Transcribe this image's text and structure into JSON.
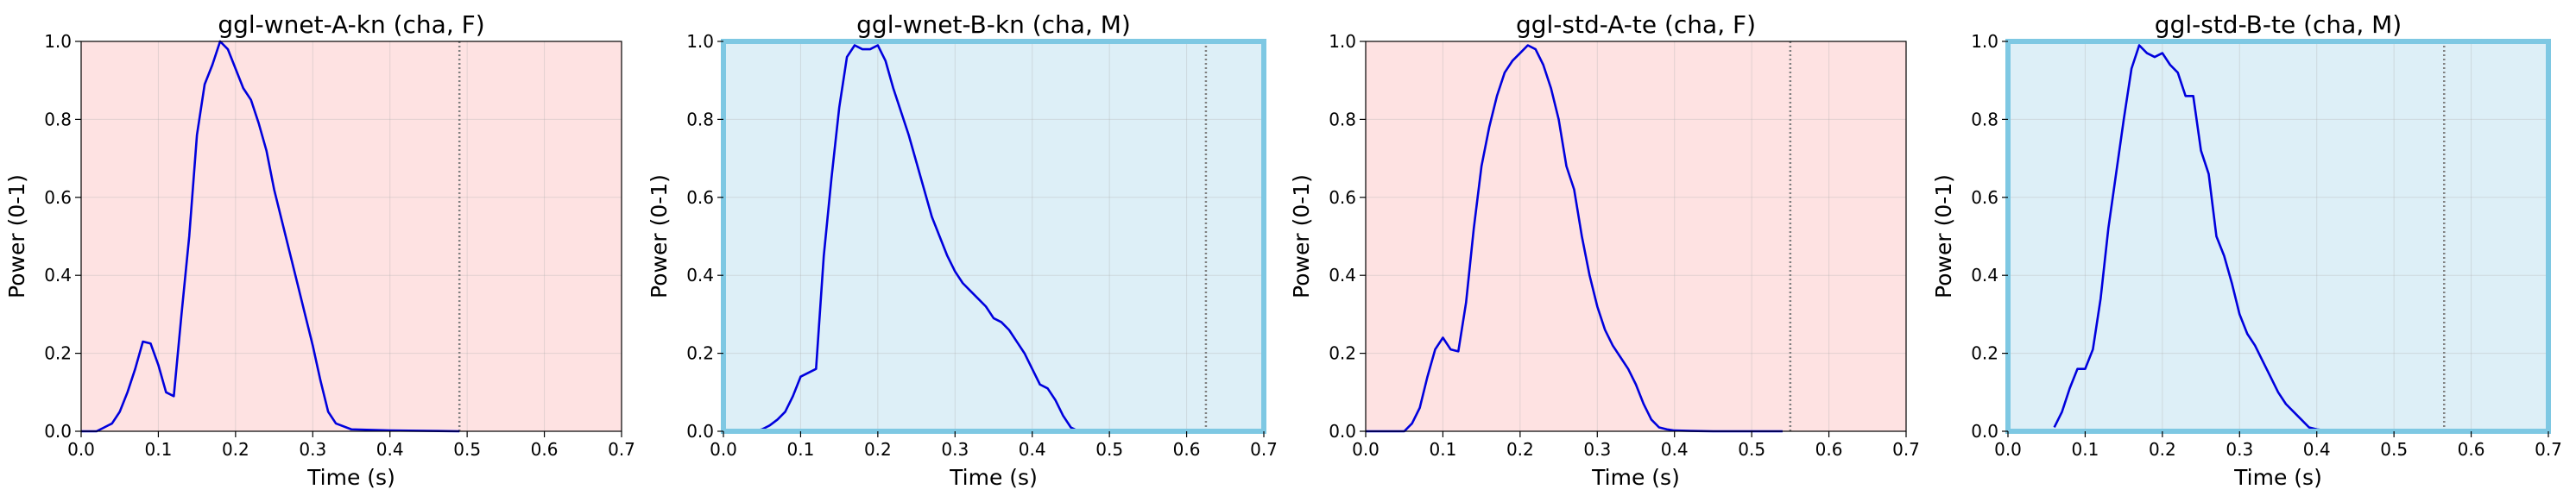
{
  "chart_data": [
    {
      "type": "line",
      "title": "ggl-wnet-A-kn (cha, F)",
      "xlabel": "Time (s)",
      "ylabel": "Power (0-1)",
      "xlim": [
        0,
        0.7
      ],
      "ylim": [
        0,
        1.0
      ],
      "xticks": [
        "0.0",
        "0.1",
        "0.2",
        "0.3",
        "0.4",
        "0.5",
        "0.6",
        "0.7"
      ],
      "yticks": [
        "0.0",
        "0.2",
        "0.4",
        "0.6",
        "0.8",
        "1.0"
      ],
      "grid": true,
      "background_color": "#fee2e2",
      "frame_color": "",
      "line_color": "#0000dd",
      "marker_x": 0.49,
      "series": [
        {
          "x": [
            0.0,
            0.02,
            0.03,
            0.04,
            0.05,
            0.06,
            0.07,
            0.08,
            0.09,
            0.1,
            0.11,
            0.12,
            0.13,
            0.14,
            0.15,
            0.16,
            0.17,
            0.18,
            0.19,
            0.2,
            0.21,
            0.22,
            0.23,
            0.24,
            0.25,
            0.26,
            0.27,
            0.28,
            0.29,
            0.3,
            0.31,
            0.32,
            0.33,
            0.35,
            0.4,
            0.45,
            0.49
          ],
          "y": [
            0.0,
            0.0,
            0.01,
            0.02,
            0.05,
            0.1,
            0.16,
            0.23,
            0.225,
            0.17,
            0.1,
            0.09,
            0.3,
            0.5,
            0.76,
            0.89,
            0.94,
            1.0,
            0.98,
            0.93,
            0.88,
            0.85,
            0.79,
            0.72,
            0.62,
            0.54,
            0.46,
            0.38,
            0.3,
            0.22,
            0.13,
            0.05,
            0.02,
            0.005,
            0.002,
            0.001,
            0.0
          ]
        }
      ]
    },
    {
      "type": "line",
      "title": "ggl-wnet-B-kn (cha, M)",
      "xlabel": "Time (s)",
      "ylabel": "Power (0-1)",
      "xlim": [
        0,
        0.7
      ],
      "ylim": [
        0,
        1.0
      ],
      "xticks": [
        "0.0",
        "0.1",
        "0.2",
        "0.3",
        "0.4",
        "0.5",
        "0.6",
        "0.7"
      ],
      "yticks": [
        "0.0",
        "0.2",
        "0.4",
        "0.6",
        "0.8",
        "1.0"
      ],
      "grid": true,
      "background_color": "#ddeff7",
      "frame_color": "#7ec8e3",
      "line_color": "#0000dd",
      "marker_x": 0.625,
      "series": [
        {
          "x": [
            0.04,
            0.05,
            0.06,
            0.07,
            0.08,
            0.09,
            0.1,
            0.11,
            0.12,
            0.13,
            0.14,
            0.15,
            0.16,
            0.17,
            0.18,
            0.19,
            0.2,
            0.21,
            0.22,
            0.23,
            0.24,
            0.25,
            0.26,
            0.27,
            0.28,
            0.29,
            0.3,
            0.31,
            0.32,
            0.33,
            0.34,
            0.35,
            0.36,
            0.37,
            0.38,
            0.39,
            0.4,
            0.41,
            0.42,
            0.43,
            0.44,
            0.45,
            0.46
          ],
          "y": [
            0.0,
            0.005,
            0.015,
            0.03,
            0.05,
            0.09,
            0.14,
            0.15,
            0.16,
            0.45,
            0.65,
            0.83,
            0.96,
            0.99,
            0.98,
            0.98,
            0.99,
            0.95,
            0.88,
            0.82,
            0.76,
            0.69,
            0.62,
            0.55,
            0.5,
            0.45,
            0.41,
            0.38,
            0.36,
            0.34,
            0.32,
            0.29,
            0.28,
            0.26,
            0.23,
            0.2,
            0.16,
            0.12,
            0.11,
            0.08,
            0.04,
            0.01,
            0.0
          ]
        }
      ]
    },
    {
      "type": "line",
      "title": "ggl-std-A-te (cha, F)",
      "xlabel": "Time (s)",
      "ylabel": "Power (0-1)",
      "xlim": [
        0,
        0.7
      ],
      "ylim": [
        0,
        1.0
      ],
      "xticks": [
        "0.0",
        "0.1",
        "0.2",
        "0.3",
        "0.4",
        "0.5",
        "0.6",
        "0.7"
      ],
      "yticks": [
        "0.0",
        "0.2",
        "0.4",
        "0.6",
        "0.8",
        "1.0"
      ],
      "grid": true,
      "background_color": "#fee2e2",
      "frame_color": "",
      "line_color": "#0000dd",
      "marker_x": 0.55,
      "series": [
        {
          "x": [
            0.0,
            0.05,
            0.06,
            0.07,
            0.08,
            0.09,
            0.1,
            0.11,
            0.12,
            0.13,
            0.14,
            0.15,
            0.16,
            0.17,
            0.18,
            0.19,
            0.2,
            0.21,
            0.22,
            0.23,
            0.24,
            0.25,
            0.26,
            0.27,
            0.28,
            0.29,
            0.3,
            0.31,
            0.32,
            0.33,
            0.34,
            0.35,
            0.36,
            0.37,
            0.38,
            0.39,
            0.4,
            0.42,
            0.45,
            0.5,
            0.54
          ],
          "y": [
            0.0,
            0.0,
            0.02,
            0.06,
            0.14,
            0.21,
            0.24,
            0.21,
            0.205,
            0.33,
            0.52,
            0.68,
            0.78,
            0.86,
            0.92,
            0.95,
            0.97,
            0.99,
            0.98,
            0.94,
            0.88,
            0.8,
            0.68,
            0.62,
            0.5,
            0.4,
            0.32,
            0.26,
            0.22,
            0.19,
            0.16,
            0.12,
            0.07,
            0.03,
            0.01,
            0.005,
            0.002,
            0.001,
            0.0,
            0.0,
            0.0
          ]
        }
      ]
    },
    {
      "type": "line",
      "title": "ggl-std-B-te (cha, M)",
      "xlabel": "Time (s)",
      "ylabel": "Power (0-1)",
      "xlim": [
        0,
        0.7
      ],
      "ylim": [
        0,
        1.0
      ],
      "xticks": [
        "0.0",
        "0.1",
        "0.2",
        "0.3",
        "0.4",
        "0.5",
        "0.6",
        "0.7"
      ],
      "yticks": [
        "0.0",
        "0.2",
        "0.4",
        "0.6",
        "0.8",
        "1.0"
      ],
      "grid": true,
      "background_color": "#ddeff7",
      "frame_color": "#7ec8e3",
      "line_color": "#0000dd",
      "marker_x": 0.565,
      "series": [
        {
          "x": [
            0.06,
            0.07,
            0.08,
            0.09,
            0.1,
            0.11,
            0.12,
            0.13,
            0.14,
            0.15,
            0.16,
            0.17,
            0.18,
            0.19,
            0.2,
            0.21,
            0.22,
            0.23,
            0.24,
            0.25,
            0.26,
            0.27,
            0.28,
            0.29,
            0.3,
            0.31,
            0.32,
            0.33,
            0.34,
            0.35,
            0.36,
            0.37,
            0.38,
            0.39,
            0.4,
            0.42,
            0.45
          ],
          "y": [
            0.01,
            0.05,
            0.11,
            0.16,
            0.16,
            0.21,
            0.34,
            0.52,
            0.66,
            0.8,
            0.93,
            0.99,
            0.97,
            0.96,
            0.97,
            0.94,
            0.92,
            0.86,
            0.86,
            0.72,
            0.66,
            0.5,
            0.45,
            0.38,
            0.3,
            0.25,
            0.22,
            0.18,
            0.14,
            0.1,
            0.07,
            0.05,
            0.03,
            0.01,
            0.005,
            0.0,
            0.0
          ]
        }
      ]
    }
  ]
}
